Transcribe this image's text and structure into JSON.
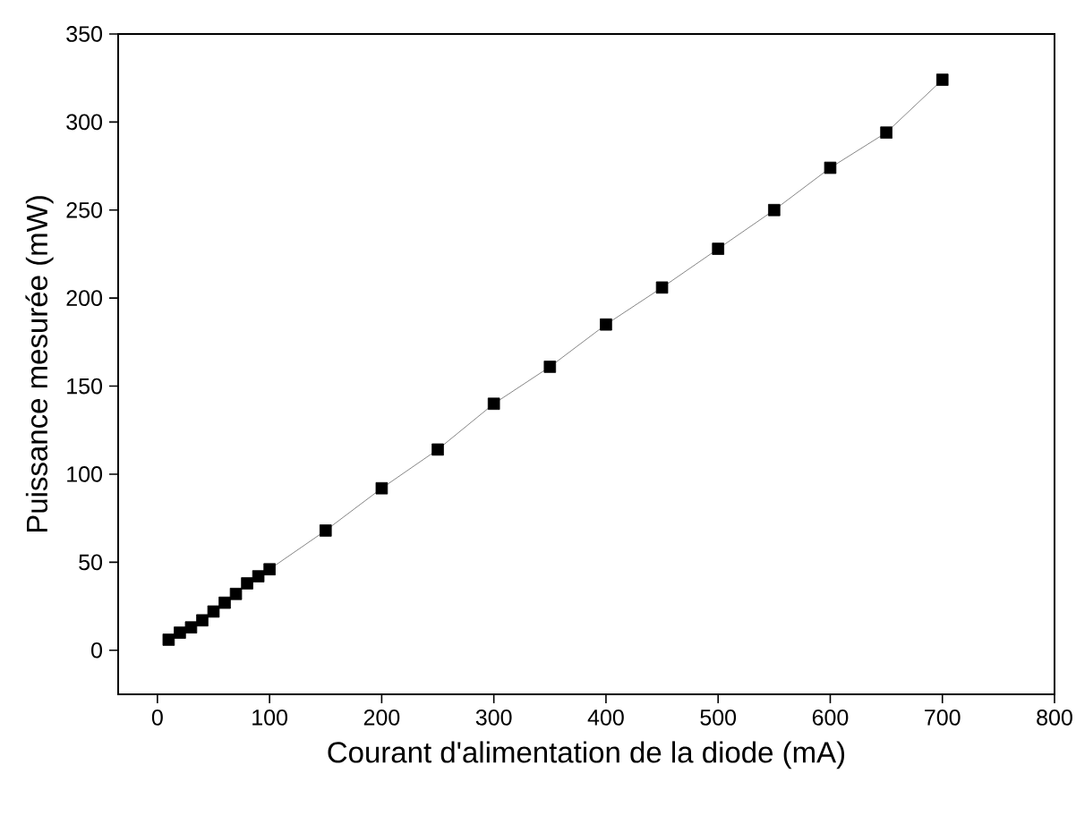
{
  "chart_data": {
    "type": "line",
    "xlabel": "Courant d'alimentation de la diode (mA)",
    "ylabel": "Puissance mesurée (mW)",
    "x": [
      10,
      20,
      30,
      40,
      50,
      60,
      70,
      80,
      90,
      100,
      150,
      200,
      250,
      300,
      350,
      400,
      450,
      500,
      550,
      600,
      650,
      700
    ],
    "series": [
      {
        "color": "#000000",
        "values": [
          6,
          10,
          13,
          17,
          22,
          27,
          32,
          38,
          42,
          46,
          68,
          92,
          114,
          140,
          161,
          185,
          206,
          228,
          250,
          274,
          294,
          324
        ]
      }
    ],
    "marker": "square",
    "line_style": "solid",
    "xlim": [
      -35,
      800
    ],
    "ylim": [
      -25,
      350
    ],
    "xticks": [
      0,
      100,
      200,
      300,
      400,
      500,
      600,
      700,
      800
    ],
    "yticks": [
      0,
      50,
      100,
      150,
      200,
      250,
      300,
      350
    ]
  }
}
